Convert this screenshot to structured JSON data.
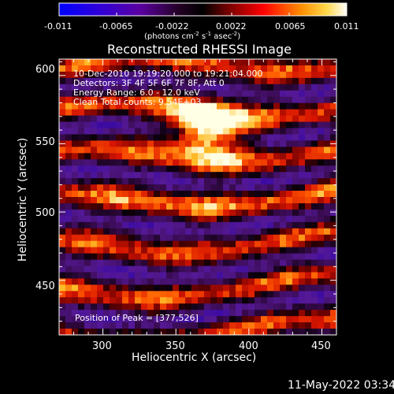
{
  "colorbar": {
    "tick_labels": [
      "-0.011",
      "-0.0065",
      "-0.0022",
      "0.0022",
      "0.0065",
      "0.011"
    ],
    "units_prefix": "(photons cm",
    "units_sup1": "-2",
    "units_mid": " s",
    "units_sup2": "-1",
    "units_mid2": " asec",
    "units_sup3": "-2",
    "units_suffix": ")"
  },
  "image": {
    "title": "Reconstructed RHESSI Image",
    "overlay_lines": [
      "10-Dec-2010 19:19:20.000 to 19:21:04.000",
      "Detectors: 3F 4F 5F 6F 7F 8F, Att 0",
      "Energy Range: 6.0 - 12.0 keV",
      "Clean     Total counts: 9.54E+03"
    ],
    "peak_label": "Position of Peak = [377,526]",
    "x_axis": {
      "label": "Heliocentric X (arcsec)",
      "ticks": [
        "300",
        "350",
        "400",
        "450"
      ],
      "range": [
        270,
        460
      ]
    },
    "y_axis": {
      "label": "Heliocentric Y (arcsec)",
      "ticks": [
        "600",
        "550",
        "500",
        "450"
      ],
      "range": [
        410,
        612
      ]
    }
  },
  "footer": {
    "timestamp": "11-May-2022 03:34"
  },
  "colors": {
    "negative_low": "#0000ff",
    "negative_mid": "#4a0f80",
    "zero": "#000000",
    "positive_low": "#ff0000",
    "positive_high": "#ffffff"
  }
}
